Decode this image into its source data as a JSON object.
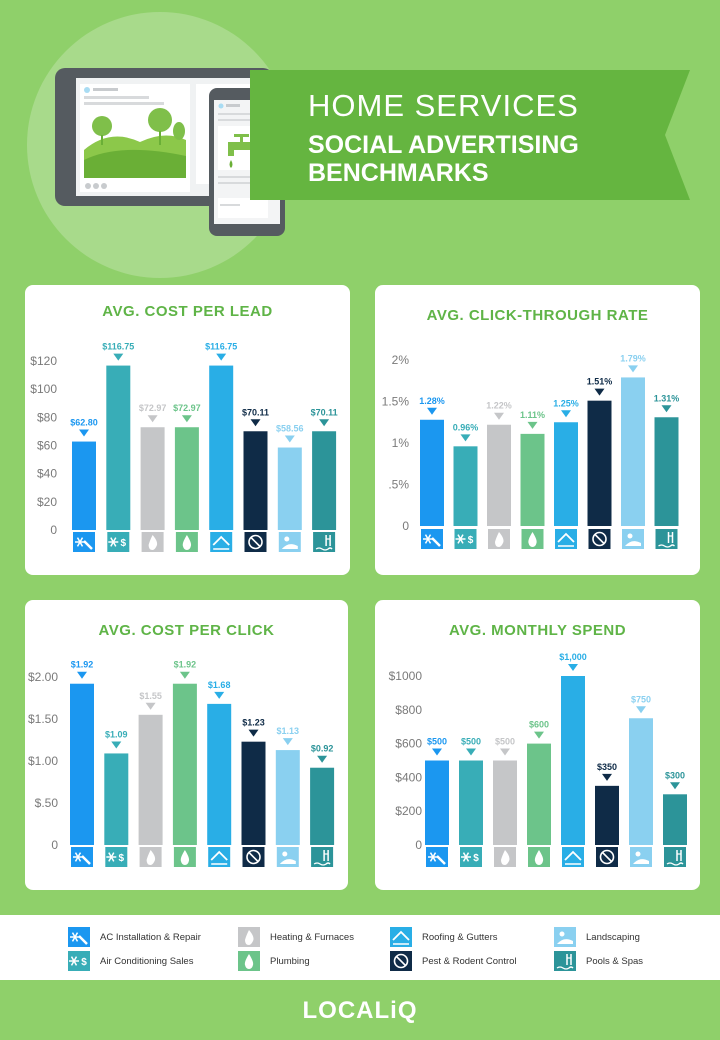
{
  "header": {
    "line1": "HOME SERVICES",
    "line2": "SOCIAL ADVERTISING",
    "line3": "BENCHMARKS"
  },
  "categories": [
    {
      "name": "AC Installation & Repair",
      "color": "#1b97f0",
      "icon": "snowflake-wrench-icon"
    },
    {
      "name": "Air Conditioning Sales",
      "color": "#38adb7",
      "icon": "snowflake-dollar-icon"
    },
    {
      "name": "Heating & Furnaces",
      "color": "#c5c6c8",
      "icon": "flame-icon"
    },
    {
      "name": "Plumbing",
      "color": "#6cc48a",
      "icon": "water-drop-icon"
    },
    {
      "name": "Roofing & Gutters",
      "color": "#29aee6",
      "icon": "house-roof-icon"
    },
    {
      "name": "Pest & Rodent Control",
      "color": "#0f2b47",
      "icon": "no-pest-icon"
    },
    {
      "name": "Landscaping",
      "color": "#8ad0f0",
      "icon": "landscape-icon"
    },
    {
      "name": "Pools & Spas",
      "color": "#2c9499",
      "icon": "pool-ladder-icon"
    }
  ],
  "chart_data": [
    {
      "type": "bar",
      "title": "AVG. COST PER LEAD",
      "categories": [
        "AC Installation & Repair",
        "Air Conditioning Sales",
        "Heating & Furnaces",
        "Plumbing",
        "Roofing & Gutters",
        "Pest & Rodent Control",
        "Landscaping",
        "Pools & Spas"
      ],
      "values": [
        62.8,
        116.75,
        72.97,
        72.97,
        116.75,
        70.11,
        58.56,
        70.11
      ],
      "labels": [
        "$62.80",
        "$116.75",
        "$72.97",
        "$72.97",
        "$116.75",
        "$70.11",
        "$58.56",
        "$70.11"
      ],
      "ylim": [
        0,
        120
      ],
      "ticks": [
        0,
        20,
        40,
        60,
        80,
        100,
        120
      ],
      "tick_labels": [
        "0",
        "$20",
        "$40",
        "$60",
        "$80",
        "$100",
        "$120"
      ]
    },
    {
      "type": "bar",
      "title": "AVG. CLICK-THROUGH RATE",
      "categories": [
        "AC Installation & Repair",
        "Air Conditioning Sales",
        "Heating & Furnaces",
        "Plumbing",
        "Roofing & Gutters",
        "Pest & Rodent Control",
        "Landscaping",
        "Pools & Spas"
      ],
      "values": [
        1.28,
        0.96,
        1.22,
        1.11,
        1.25,
        1.51,
        1.79,
        1.31
      ],
      "labels": [
        "1.28%",
        "0.96%",
        "1.22%",
        "1.11%",
        "1.25%",
        "1.51%",
        "1.79%",
        "1.31%"
      ],
      "ylim": [
        0,
        2
      ],
      "ticks": [
        0,
        0.5,
        1,
        1.5,
        2
      ],
      "tick_labels": [
        "0",
        ".5%",
        "1%",
        "1.5%",
        "2%"
      ]
    },
    {
      "type": "bar",
      "title": "AVG. COST PER CLICK",
      "categories": [
        "AC Installation & Repair",
        "Air Conditioning Sales",
        "Heating & Furnaces",
        "Plumbing",
        "Roofing & Gutters",
        "Pest & Rodent Control",
        "Landscaping",
        "Pools & Spas"
      ],
      "values": [
        1.92,
        1.09,
        1.55,
        1.92,
        1.68,
        1.23,
        1.13,
        0.92
      ],
      "labels": [
        "$1.92",
        "$1.09",
        "$1.55",
        "$1.92",
        "$1.68",
        "$1.23",
        "$1.13",
        "$0.92"
      ],
      "ylim": [
        0,
        2
      ],
      "ticks": [
        0,
        0.5,
        1,
        1.5,
        2
      ],
      "tick_labels": [
        "0",
        "$.50",
        "$1.00",
        "$1.50",
        "$2.00"
      ]
    },
    {
      "type": "bar",
      "title": "AVG. MONTHLY SPEND",
      "categories": [
        "AC Installation & Repair",
        "Air Conditioning Sales",
        "Heating & Furnaces",
        "Plumbing",
        "Roofing & Gutters",
        "Pest & Rodent Control",
        "Landscaping",
        "Pools & Spas"
      ],
      "values": [
        500,
        500,
        500,
        600,
        1000,
        350,
        750,
        300
      ],
      "labels": [
        "$500",
        "$500",
        "$500",
        "$600",
        "$1,000",
        "$350",
        "$750",
        "$300"
      ],
      "ylim": [
        0,
        1000
      ],
      "ticks": [
        0,
        200,
        400,
        600,
        800,
        1000
      ],
      "tick_labels": [
        "0",
        "$200",
        "$400",
        "$600",
        "$800",
        "$1000"
      ]
    }
  ],
  "logo": "LOCALiQ"
}
